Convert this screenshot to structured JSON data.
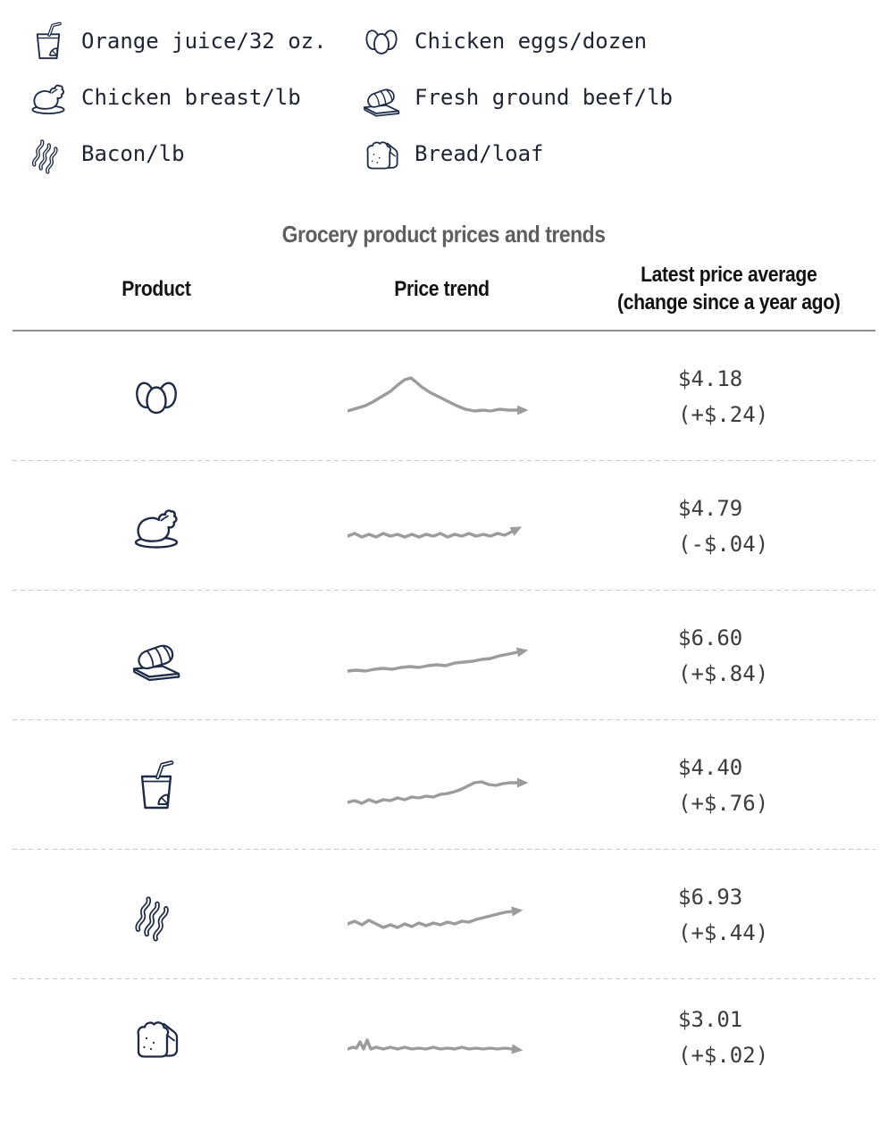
{
  "colors": {
    "icon_navy": "#1d2b47",
    "legend_text": "#1d2433",
    "title_gray": "#5f5f5f",
    "header_text": "#121212",
    "price_text": "#3c3c3c",
    "sparkline_gray": "#9c9c9c",
    "header_rule": "#8f8f8f",
    "row_divider_dashed": "#c9c9c9"
  },
  "legend": {
    "items": [
      {
        "icon": "orange-juice",
        "label": "Orange juice/32 oz."
      },
      {
        "icon": "chicken-eggs",
        "label": "Chicken eggs/dozen"
      },
      {
        "icon": "chicken-breast",
        "label": "Chicken breast/lb"
      },
      {
        "icon": "ground-beef",
        "label": "Fresh ground beef/lb"
      },
      {
        "icon": "bacon",
        "label": "Bacon/lb"
      },
      {
        "icon": "bread",
        "label": "Bread/loaf"
      }
    ]
  },
  "chart_data": {
    "type": "table",
    "title": "Grocery product prices and trends",
    "columns": [
      "Product",
      "Price trend",
      "Latest price average (change since a year ago)"
    ],
    "header": {
      "product": "Product",
      "trend": "Price trend",
      "price_line1": "Latest price average",
      "price_line2": "(change since a year ago)"
    },
    "legend_note": "sparklines are unlabeled trend lines over the past year, gray with right-pointing arrowheads",
    "rows": [
      {
        "icon": "chicken-eggs",
        "product": "Chicken eggs/dozen",
        "price": "$4.18",
        "change": "(+$.24)",
        "price_value": 4.18,
        "change_value": 0.24,
        "trend_description": "rises sharply to a mid-period peak then falls back and flattens",
        "spark": [
          [
            0,
            46
          ],
          [
            10,
            43
          ],
          [
            20,
            40
          ],
          [
            28,
            36
          ],
          [
            38,
            30
          ],
          [
            48,
            24
          ],
          [
            56,
            17
          ],
          [
            64,
            11
          ],
          [
            71,
            9
          ],
          [
            76,
            13
          ],
          [
            83,
            19
          ],
          [
            92,
            25
          ],
          [
            102,
            30
          ],
          [
            112,
            35
          ],
          [
            122,
            40
          ],
          [
            132,
            44
          ],
          [
            142,
            46
          ],
          [
            152,
            45
          ],
          [
            160,
            46
          ],
          [
            170,
            44
          ],
          [
            180,
            45
          ],
          [
            190,
            45
          ]
        ]
      },
      {
        "icon": "chicken-breast",
        "product": "Chicken breast/lb",
        "price": "$4.79",
        "change": "(-$.04)",
        "price_value": 4.79,
        "change_value": -0.04,
        "trend_description": "flat and jagged across the whole period",
        "spark": [
          [
            0,
            41
          ],
          [
            8,
            38
          ],
          [
            16,
            42
          ],
          [
            24,
            39
          ],
          [
            32,
            42
          ],
          [
            40,
            38
          ],
          [
            48,
            41
          ],
          [
            56,
            39
          ],
          [
            64,
            42
          ],
          [
            72,
            39
          ],
          [
            80,
            42
          ],
          [
            88,
            39
          ],
          [
            96,
            41
          ],
          [
            104,
            38
          ],
          [
            112,
            42
          ],
          [
            120,
            39
          ],
          [
            128,
            41
          ],
          [
            136,
            38
          ],
          [
            144,
            41
          ],
          [
            152,
            39
          ],
          [
            160,
            41
          ],
          [
            168,
            38
          ],
          [
            176,
            40
          ],
          [
            184,
            36
          ]
        ]
      },
      {
        "icon": "ground-beef",
        "product": "Fresh ground beef/lb",
        "price": "$6.60",
        "change": "(+$.84)",
        "price_value": 6.6,
        "change_value": 0.84,
        "trend_description": "slow steady rise from left to right",
        "spark": [
          [
            0,
            47
          ],
          [
            10,
            46
          ],
          [
            20,
            47
          ],
          [
            30,
            45
          ],
          [
            40,
            44
          ],
          [
            50,
            45
          ],
          [
            60,
            43
          ],
          [
            70,
            42
          ],
          [
            80,
            43
          ],
          [
            90,
            41
          ],
          [
            100,
            40
          ],
          [
            110,
            41
          ],
          [
            120,
            38
          ],
          [
            130,
            37
          ],
          [
            140,
            36
          ],
          [
            150,
            34
          ],
          [
            160,
            33
          ],
          [
            170,
            30
          ],
          [
            180,
            28
          ],
          [
            190,
            26
          ]
        ]
      },
      {
        "icon": "orange-juice",
        "product": "Orange juice/32 oz.",
        "price": "$4.40",
        "change": "(+$.76)",
        "price_value": 4.4,
        "change_value": 0.76,
        "trend_description": "gradual wiggly rise with a bump near the end",
        "spark": [
          [
            0,
            49
          ],
          [
            8,
            47
          ],
          [
            16,
            50
          ],
          [
            24,
            46
          ],
          [
            32,
            49
          ],
          [
            40,
            46
          ],
          [
            48,
            47
          ],
          [
            56,
            44
          ],
          [
            64,
            46
          ],
          [
            72,
            43
          ],
          [
            80,
            44
          ],
          [
            88,
            42
          ],
          [
            96,
            43
          ],
          [
            104,
            40
          ],
          [
            112,
            39
          ],
          [
            120,
            37
          ],
          [
            128,
            34
          ],
          [
            136,
            30
          ],
          [
            142,
            27
          ],
          [
            150,
            26
          ],
          [
            158,
            29
          ],
          [
            166,
            30
          ],
          [
            174,
            28
          ],
          [
            182,
            27
          ],
          [
            190,
            27
          ]
        ]
      },
      {
        "icon": "bacon",
        "product": "Bacon/lb",
        "price": "$6.93",
        "change": "(+$.44)",
        "price_value": 6.93,
        "change_value": 0.44,
        "trend_description": "wavy with a mid dip then rising toward the end",
        "spark": [
          [
            0,
            40
          ],
          [
            8,
            37
          ],
          [
            16,
            41
          ],
          [
            24,
            36
          ],
          [
            32,
            40
          ],
          [
            40,
            44
          ],
          [
            48,
            41
          ],
          [
            56,
            44
          ],
          [
            64,
            40
          ],
          [
            72,
            43
          ],
          [
            80,
            39
          ],
          [
            88,
            42
          ],
          [
            96,
            39
          ],
          [
            104,
            41
          ],
          [
            112,
            38
          ],
          [
            120,
            40
          ],
          [
            128,
            37
          ],
          [
            136,
            38
          ],
          [
            144,
            35
          ],
          [
            152,
            33
          ],
          [
            160,
            31
          ],
          [
            168,
            29
          ],
          [
            176,
            27
          ],
          [
            184,
            26
          ]
        ]
      },
      {
        "icon": "bread",
        "product": "Bread/loaf",
        "price": "$3.01",
        "change": "(+$.02)",
        "price_value": 3.01,
        "change_value": 0.02,
        "trend_description": "small spike near the start then essentially flat",
        "spark": [
          [
            0,
            43
          ],
          [
            6,
            41
          ],
          [
            10,
            42
          ],
          [
            14,
            35
          ],
          [
            18,
            43
          ],
          [
            22,
            33
          ],
          [
            26,
            43
          ],
          [
            32,
            41
          ],
          [
            40,
            43
          ],
          [
            48,
            41
          ],
          [
            56,
            43
          ],
          [
            64,
            41
          ],
          [
            72,
            43
          ],
          [
            80,
            42
          ],
          [
            88,
            43
          ],
          [
            96,
            41
          ],
          [
            104,
            43
          ],
          [
            112,
            42
          ],
          [
            120,
            43
          ],
          [
            128,
            41
          ],
          [
            136,
            43
          ],
          [
            144,
            42
          ],
          [
            152,
            43
          ],
          [
            160,
            42
          ],
          [
            168,
            43
          ],
          [
            176,
            42
          ],
          [
            184,
            43
          ]
        ]
      }
    ]
  }
}
